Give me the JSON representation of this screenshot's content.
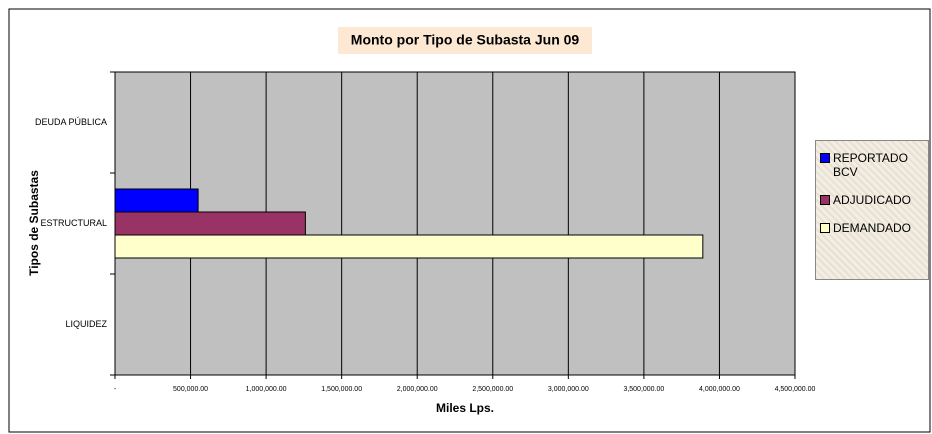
{
  "chart_data": {
    "type": "barh",
    "title": "Monto por Tipo de Subasta Jun 09",
    "x_label": "Miles Lps.",
    "y_label": "Tipos de Subastas",
    "categories": [
      "DEUDA PÚBLICA",
      "ESTRUCTURAL",
      "LIQUIDEZ"
    ],
    "series": [
      {
        "name": "REPORTADO BCV",
        "color": "#0000ff",
        "values": [
          null,
          550000,
          null
        ]
      },
      {
        "name": "ADJUDICADO",
        "color": "#993366",
        "values": [
          null,
          1260000,
          null
        ]
      },
      {
        "name": "DEMANDADO",
        "color": "#ffffcc",
        "values": [
          null,
          3890000,
          null
        ]
      }
    ],
    "xlim": [
      0,
      4500000
    ],
    "xticks": [
      {
        "value": 0,
        "label": "-"
      },
      {
        "value": 500000,
        "label": "500,000.00"
      },
      {
        "value": 1000000,
        "label": "1,000,000.00"
      },
      {
        "value": 1500000,
        "label": "1,500,000.00"
      },
      {
        "value": 2000000,
        "label": "2,000,000.00"
      },
      {
        "value": 2500000,
        "label": "2,500,000.00"
      },
      {
        "value": 3000000,
        "label": "3,000,000.00"
      },
      {
        "value": 3500000,
        "label": "3,500,000.00"
      },
      {
        "value": 4000000,
        "label": "4,000,000.00"
      },
      {
        "value": 4500000,
        "label": "4,500,000.00"
      }
    ],
    "grid": true,
    "legend": "right",
    "plot_background": "#c0c0c0"
  }
}
